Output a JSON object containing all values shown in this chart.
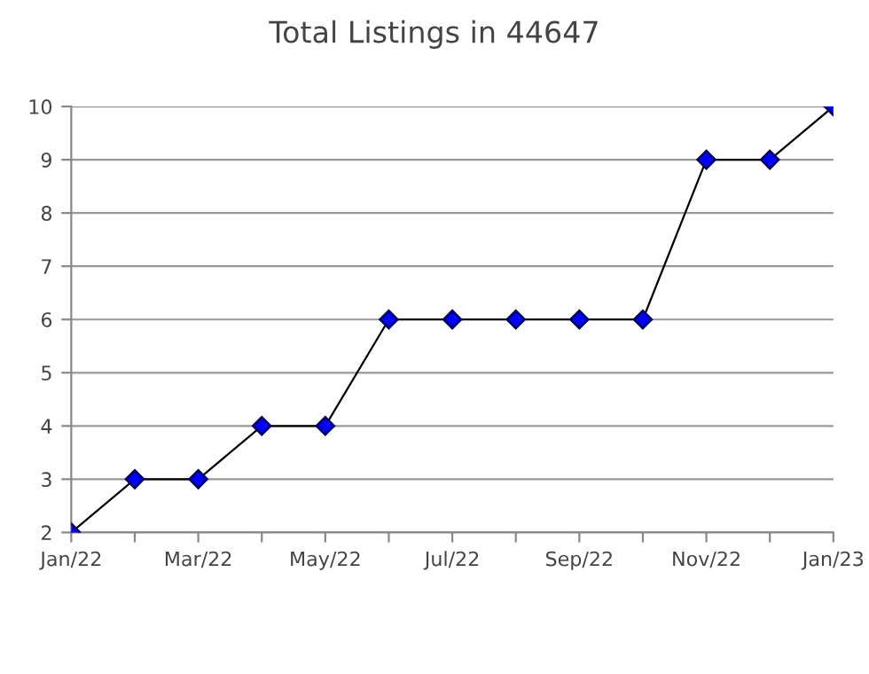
{
  "chart_data": {
    "type": "line",
    "title": "Total Listings in 44647",
    "categories": [
      "Jan/22",
      null,
      "Mar/22",
      null,
      "May/22",
      null,
      "Jul/22",
      null,
      "Sep/22",
      null,
      "Nov/22",
      null,
      "Jan/23"
    ],
    "series": [
      {
        "color": "#000000",
        "values": [
          2,
          3,
          3,
          4,
          4,
          6,
          6,
          6,
          6,
          6,
          9,
          9,
          10
        ]
      }
    ],
    "marker": "diamond",
    "ylim": [
      2,
      10
    ],
    "yticks": [
      2,
      3,
      4,
      5,
      6,
      7,
      8,
      9,
      10
    ],
    "grid": "y"
  }
}
